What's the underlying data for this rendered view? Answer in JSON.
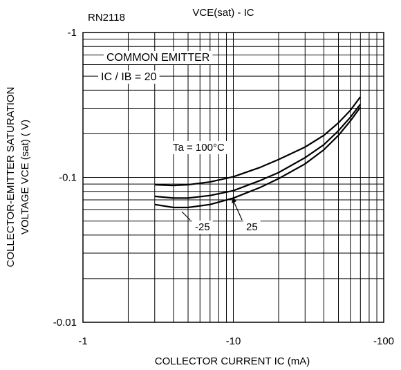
{
  "chart_data": {
    "type": "line",
    "title": "VCE(sat) - IC",
    "part_number": "RN2118",
    "xlabel": "COLLECTOR CURRENT   IC (mA)",
    "ylabel_line1": "COLLECTOR-EMITTER SATURATION",
    "ylabel_line2": "VOLTAGE  VCE (sat) ( V)",
    "x_scale": "log",
    "y_scale": "log",
    "xlim": [
      -1,
      -100
    ],
    "ylim": [
      -0.01,
      -1
    ],
    "x_ticks": [
      {
        "value": -1,
        "label": "-1"
      },
      {
        "value": -10,
        "label": "-10"
      },
      {
        "value": -100,
        "label": "-100"
      }
    ],
    "y_ticks": [
      {
        "value": -1,
        "label": "-1"
      },
      {
        "value": -0.1,
        "label": "-0.1"
      },
      {
        "value": -0.01,
        "label": "-0.01"
      }
    ],
    "grid": true,
    "conditions": [
      "COMMON EMITTER",
      "IC / IB = 20"
    ],
    "series": [
      {
        "name": "Ta = 100°C",
        "x": [
          -3,
          -4,
          -5,
          -7,
          -10,
          -15,
          -20,
          -30,
          -40,
          -50,
          -60,
          -70
        ],
        "y": [
          -0.089,
          -0.088,
          -0.089,
          -0.093,
          -0.101,
          -0.117,
          -0.133,
          -0.162,
          -0.195,
          -0.238,
          -0.29,
          -0.36
        ]
      },
      {
        "name": "25",
        "x": [
          -3,
          -4,
          -5,
          -7,
          -10,
          -15,
          -20,
          -30,
          -40,
          -50,
          -60,
          -70
        ],
        "y": [
          -0.074,
          -0.072,
          -0.072,
          -0.075,
          -0.081,
          -0.095,
          -0.108,
          -0.137,
          -0.168,
          -0.21,
          -0.26,
          -0.32
        ]
      },
      {
        "name": "-25",
        "x": [
          -3,
          -4,
          -5,
          -7,
          -10,
          -15,
          -20,
          -30,
          -40,
          -50,
          -60,
          -70
        ],
        "y": [
          -0.065,
          -0.062,
          -0.062,
          -0.065,
          -0.072,
          -0.085,
          -0.098,
          -0.124,
          -0.155,
          -0.195,
          -0.245,
          -0.305
        ]
      }
    ],
    "annotations": [
      {
        "text": "Ta = 100°C",
        "series": "Ta = 100°C"
      },
      {
        "text": "25",
        "series": "25"
      },
      {
        "text": "-25",
        "series": "-25"
      }
    ]
  }
}
